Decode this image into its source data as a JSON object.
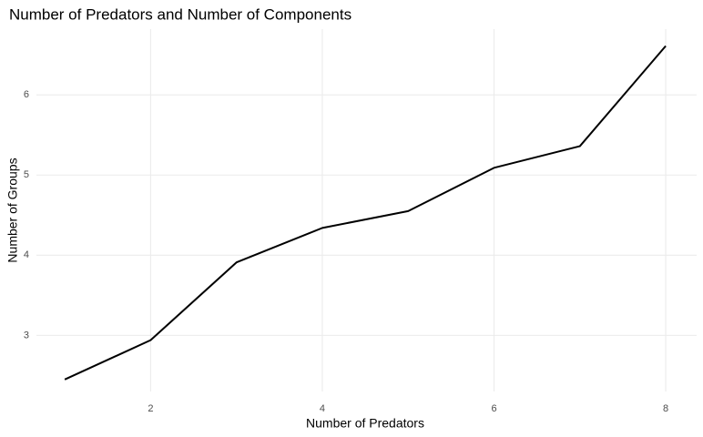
{
  "chart_data": {
    "type": "line",
    "title": "Number of Predators and Number of Components",
    "x_label": "Number of Predators",
    "y_label": "Number of Groups",
    "x": [
      1,
      2,
      3,
      4,
      5,
      6,
      7,
      8
    ],
    "series": [
      {
        "name": "Number of Groups",
        "color": "#000000",
        "values": [
          2.45,
          2.94,
          3.91,
          4.34,
          4.55,
          5.09,
          5.36,
          6.61
        ]
      }
    ],
    "xlim": [
      0.67,
      8.36
    ],
    "ylim": [
      2.3,
      6.82
    ],
    "xticks": [
      2,
      4,
      6,
      8
    ],
    "yticks": [
      3,
      4,
      5,
      6
    ],
    "grid": true
  }
}
